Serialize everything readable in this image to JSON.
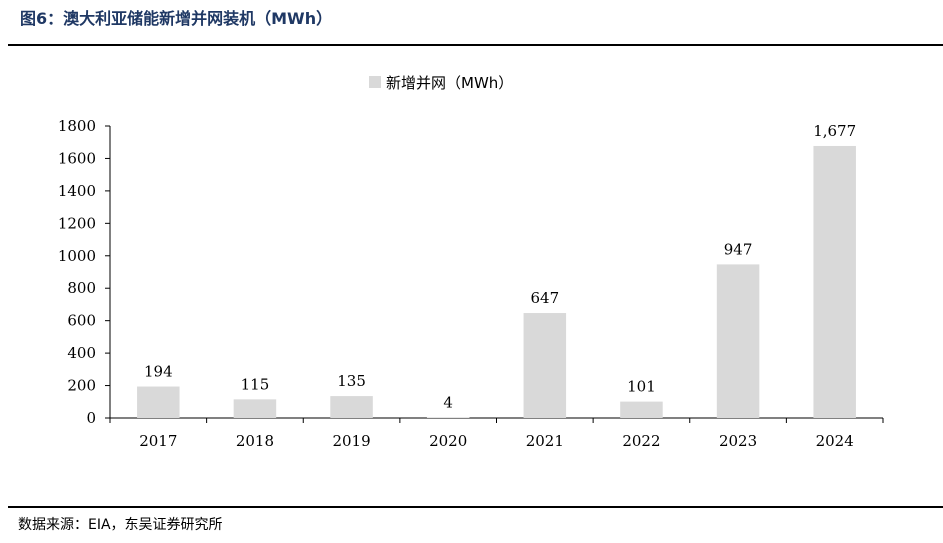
{
  "header": {
    "title": "图6：澳大利亚储能新增并网装机（MWh）"
  },
  "footer": {
    "source": "数据来源：EIA，东吴证券研究所"
  },
  "chart_data": {
    "type": "bar",
    "categories": [
      "2017",
      "2018",
      "2019",
      "2020",
      "2021",
      "2022",
      "2023",
      "2024"
    ],
    "series": [
      {
        "name": "新增并网（MWh）",
        "values": [
          194,
          115,
          135,
          4,
          647,
          101,
          947,
          1677
        ],
        "labels": [
          "194",
          "115",
          "135",
          "4",
          "647",
          "101",
          "947",
          "1,677"
        ]
      }
    ],
    "title": "",
    "xlabel": "",
    "ylabel": "",
    "ylim": [
      0,
      1800
    ],
    "yticks": [
      "0",
      "200",
      "400",
      "600",
      "800",
      "1000",
      "1200",
      "1400",
      "1600",
      "1800"
    ],
    "grid": false,
    "legend_position": "top-center",
    "colors": {
      "bar": "#d9d9d9",
      "axis": "#000000"
    }
  }
}
